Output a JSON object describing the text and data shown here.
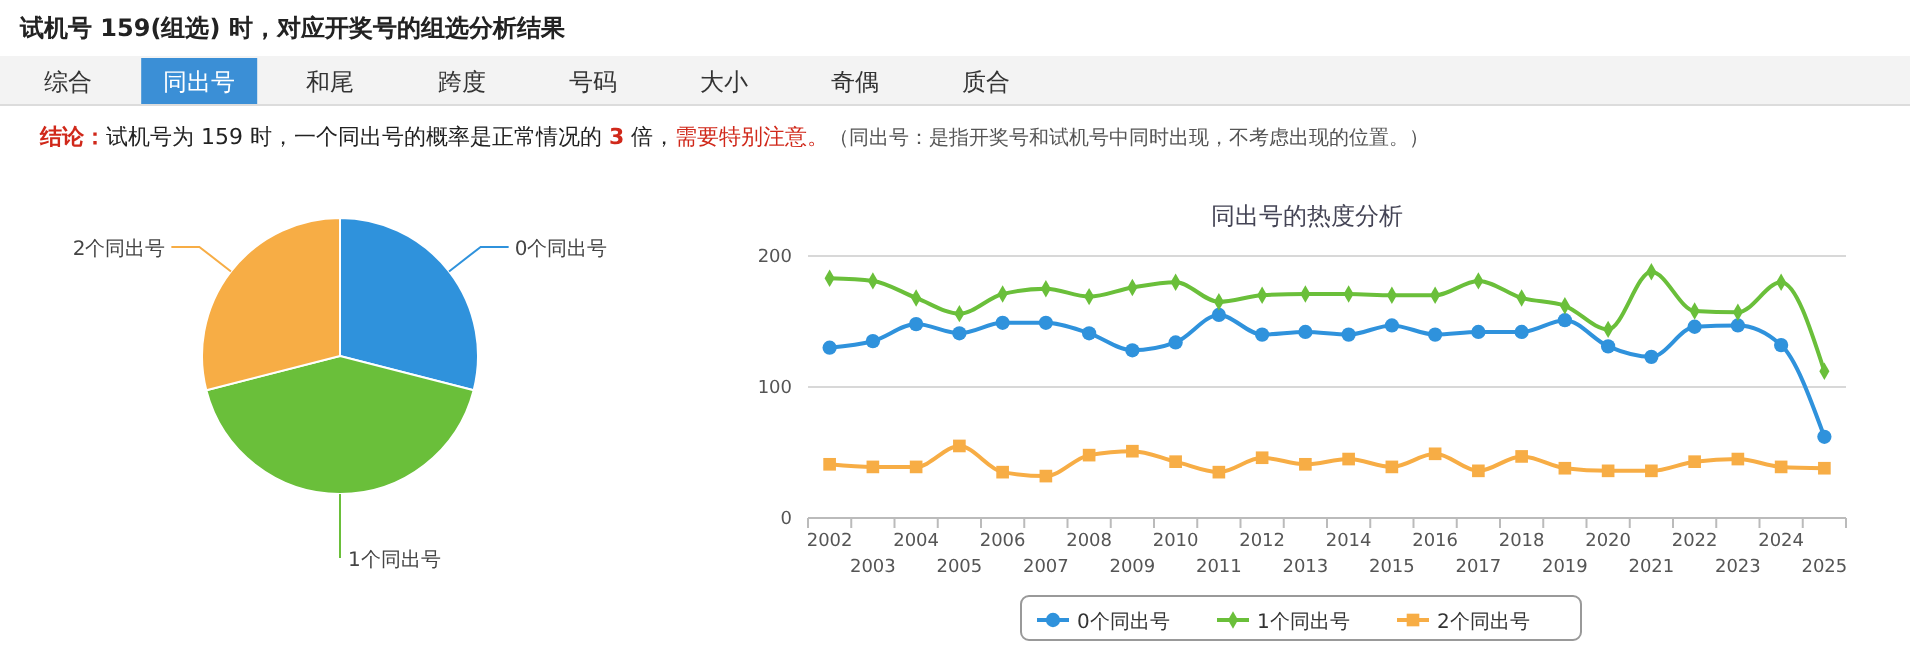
{
  "chart_data": [
    {
      "type": "other",
      "title": "试机号 159(组选) 时，对应开奖号的组选分析结果",
      "categories": [
        "综合",
        "同出号",
        "和尾",
        "跨度",
        "号码",
        "大小",
        "奇偶",
        "质合"
      ],
      "annotations": [
        "结论：",
        "试机号为 159 时，一个同出号的概率是正常情况的 ",
        "3",
        " 倍，",
        "需要特别注意。",
        "（同出号：是指开奖号和试机号中同时出现，不考虑出现的位置。）"
      ]
    },
    {
      "type": "pie",
      "categories": [
        "0个同出号",
        "1个同出号",
        "2个同出号"
      ],
      "values": [
        29,
        42,
        29
      ],
      "colors": [
        "#2f92dc",
        "#6abf3a",
        "#f7ad45"
      ]
    },
    {
      "type": "line",
      "title": "同出号的热度分析",
      "categories": [
        "2002",
        "2003",
        "2004",
        "2005",
        "2006",
        "2007",
        "2008",
        "2009",
        "2010",
        "2011",
        "2012",
        "2013",
        "2014",
        "2015",
        "2016",
        "2017",
        "2018",
        "2019",
        "2020",
        "2021",
        "2022",
        "2023",
        "2024",
        "2025"
      ],
      "ylim": [
        0,
        200
      ],
      "yticks": [
        0,
        100,
        200
      ],
      "grid": "y",
      "legend": "bottom",
      "series": [
        {
          "name": "0个同出号",
          "color": "#2f92dc",
          "marker": "circle",
          "values": [
            130,
            135,
            148,
            141,
            149,
            149,
            141,
            128,
            134,
            155,
            140,
            142,
            140,
            147,
            140,
            142,
            142,
            151,
            131,
            123,
            146,
            147,
            132,
            62
          ]
        },
        {
          "name": "1个同出号",
          "color": "#6abf3a",
          "marker": "diamond",
          "values": [
            183,
            181,
            168,
            156,
            171,
            175,
            169,
            176,
            180,
            165,
            170,
            171,
            171,
            170,
            170,
            181,
            168,
            162,
            144,
            188,
            158,
            157,
            180,
            112
          ]
        },
        {
          "name": "2个同出号",
          "color": "#f7ad45",
          "marker": "square",
          "values": [
            41,
            39,
            39,
            55,
            35,
            32,
            48,
            51,
            43,
            35,
            46,
            41,
            45,
            39,
            49,
            36,
            47,
            38,
            36,
            36,
            43,
            45,
            39,
            38
          ]
        }
      ]
    }
  ]
}
